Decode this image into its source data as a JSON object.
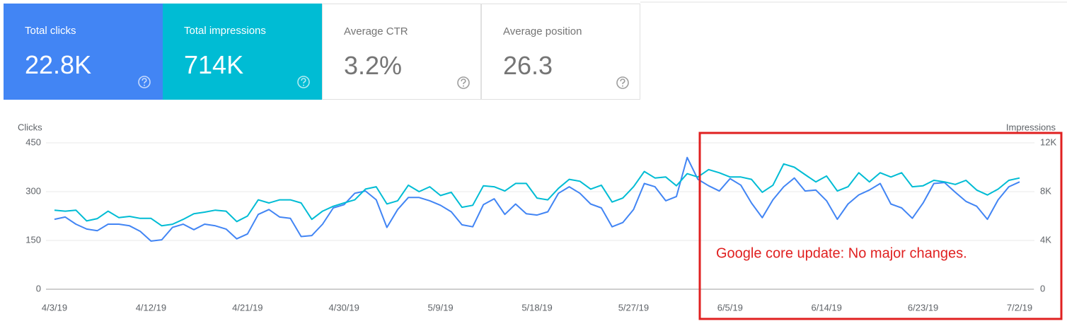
{
  "cards": [
    {
      "label": "Total clicks",
      "value": "22.8K"
    },
    {
      "label": "Total impressions",
      "value": "714K"
    },
    {
      "label": "Average CTR",
      "value": "3.2%"
    },
    {
      "label": "Average position",
      "value": "26.3"
    }
  ],
  "chart_data": {
    "type": "line",
    "annotation": "Google core update: No major changes.",
    "y_label": "Clicks",
    "y2_label": "Impressions",
    "categories": [
      "4/3/19",
      null,
      null,
      null,
      null,
      null,
      null,
      null,
      null,
      "4/12/19",
      null,
      null,
      null,
      null,
      null,
      null,
      null,
      null,
      "4/21/19",
      null,
      null,
      null,
      null,
      null,
      null,
      null,
      null,
      "4/30/19",
      null,
      null,
      null,
      null,
      null,
      null,
      null,
      null,
      "5/9/19",
      null,
      null,
      null,
      null,
      null,
      null,
      null,
      null,
      "5/18/19",
      null,
      null,
      null,
      null,
      null,
      null,
      null,
      null,
      "5/27/19",
      null,
      null,
      null,
      null,
      null,
      null,
      null,
      null,
      "6/5/19",
      null,
      null,
      null,
      null,
      null,
      null,
      null,
      null,
      "6/14/19",
      null,
      null,
      null,
      null,
      null,
      null,
      null,
      null,
      "6/23/19",
      null,
      null,
      null,
      null,
      null,
      null,
      null,
      null,
      "7/2/19"
    ],
    "ylim": [
      0,
      450
    ],
    "yticks": [
      0,
      150,
      300,
      450
    ],
    "y2lim": [
      0,
      12000
    ],
    "y2ticks": [
      0,
      {
        "value": 4000,
        "label": "4K"
      },
      {
        "value": 8000,
        "label": "8K"
      },
      {
        "value": 12000,
        "label": "12K"
      }
    ],
    "grid": true,
    "series": [
      {
        "name": "Clicks",
        "color": "#4285f4",
        "values": [
          215,
          222,
          200,
          185,
          180,
          200,
          200,
          195,
          178,
          148,
          152,
          190,
          200,
          183,
          200,
          195,
          185,
          155,
          170,
          230,
          245,
          222,
          218,
          162,
          165,
          200,
          250,
          260,
          295,
          302,
          275,
          190,
          245,
          282,
          282,
          272,
          258,
          238,
          198,
          192,
          260,
          278,
          230,
          262,
          232,
          228,
          238,
          295,
          315,
          295,
          262,
          250,
          192,
          205,
          245,
          325,
          315,
          272,
          285,
          405,
          338,
          318,
          302,
          340,
          320,
          265,
          220,
          275,
          315,
          342,
          302,
          305,
          272,
          215,
          262,
          290,
          305,
          325,
          262,
          250,
          218,
          265,
          325,
          328,
          298,
          270,
          255,
          215,
          275,
          315,
          330
        ]
      },
      {
        "name": "Impressions",
        "color": "#00bcd4",
        "axis": "y2",
        "values": [
          6480,
          6400,
          6480,
          5600,
          5790,
          6400,
          5870,
          5970,
          5810,
          5810,
          5200,
          5330,
          5730,
          6190,
          6320,
          6480,
          6400,
          5550,
          6000,
          7330,
          7070,
          7330,
          7330,
          7070,
          5730,
          6400,
          6800,
          7070,
          7330,
          8210,
          8400,
          6990,
          7250,
          8530,
          8000,
          8400,
          7680,
          7950,
          6720,
          6880,
          8480,
          8400,
          8050,
          8670,
          8670,
          7470,
          7330,
          8270,
          9010,
          8850,
          8210,
          8530,
          7150,
          7470,
          8400,
          9650,
          9120,
          9200,
          8480,
          9470,
          9200,
          9810,
          9550,
          9200,
          9200,
          9010,
          7950,
          8530,
          10270,
          10000,
          9390,
          8800,
          9280,
          8050,
          8400,
          9550,
          8800,
          9550,
          9200,
          9550,
          8400,
          8480,
          8930,
          8800,
          8590,
          8930,
          8130,
          7730,
          8210,
          8930,
          9120
        ]
      }
    ]
  }
}
